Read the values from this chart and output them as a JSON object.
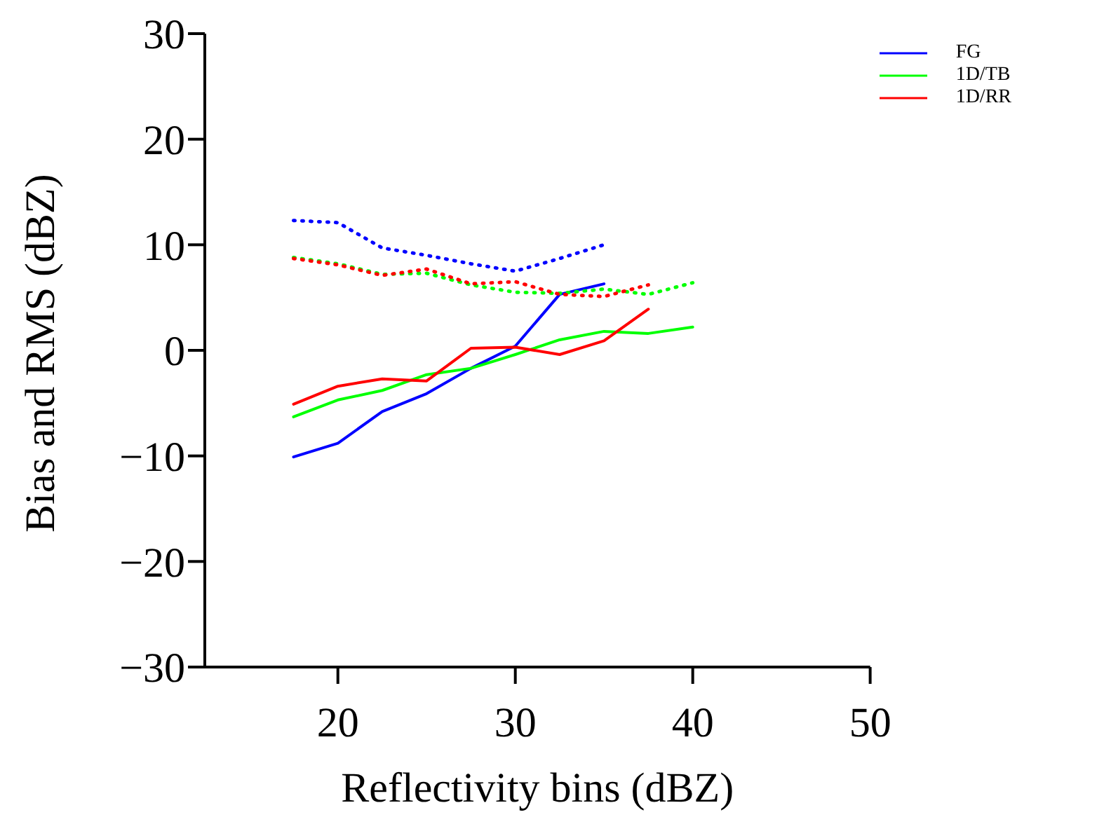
{
  "chart_data": {
    "type": "line",
    "xlabel": "Reflectivity bins (dBZ)",
    "ylabel": "Bias and RMS (dBZ)",
    "xlim": [
      12.5,
      50
    ],
    "xticks": [
      20,
      30,
      40,
      50
    ],
    "ylim": [
      -30,
      30
    ],
    "yticks": [
      -30,
      -20,
      -10,
      0,
      10,
      20,
      30
    ],
    "grid": false,
    "legend": "top right",
    "marker": "none",
    "series": [
      {
        "name": "FG",
        "color": "#0000ff",
        "line_style": "solid",
        "x": [
          17.5,
          20,
          22.5,
          25,
          27.5,
          30,
          32.5,
          35
        ],
        "values": [
          -10.1,
          -8.8,
          -5.8,
          -4.1,
          -1.7,
          0.4,
          5.3,
          6.3
        ]
      },
      {
        "name": "1D/TB",
        "color": "#00ff00",
        "line_style": "solid",
        "x": [
          17.5,
          20,
          22.5,
          25,
          27.5,
          30,
          32.5,
          35,
          37.5,
          40
        ],
        "values": [
          -6.3,
          -4.7,
          -3.8,
          -2.3,
          -1.7,
          -0.4,
          1.0,
          1.8,
          1.6,
          2.2
        ]
      },
      {
        "name": "1D/RR",
        "color": "#ff0000",
        "line_style": "solid",
        "x": [
          17.5,
          20,
          22.5,
          25,
          27.5,
          30,
          32.5,
          35,
          37.5
        ],
        "values": [
          -5.1,
          -3.4,
          -2.7,
          -2.9,
          0.2,
          0.3,
          -0.4,
          0.9,
          3.9
        ]
      },
      {
        "color": "#0000ff",
        "line_style": "dotted",
        "x": [
          17.5,
          20,
          22.5,
          25,
          27.5,
          30,
          32.5,
          35
        ],
        "values": [
          12.3,
          12.1,
          9.7,
          9.0,
          8.2,
          7.5,
          8.7,
          10.0
        ]
      },
      {
        "color": "#00ff00",
        "line_style": "dotted",
        "x": [
          17.5,
          20,
          22.5,
          25,
          27.5,
          30,
          32.5,
          35,
          37.5,
          40
        ],
        "values": [
          8.8,
          8.2,
          7.2,
          7.3,
          6.2,
          5.5,
          5.4,
          5.8,
          5.3,
          6.4
        ]
      },
      {
        "color": "#ff0000",
        "line_style": "dotted",
        "x": [
          17.5,
          20,
          22.5,
          25,
          27.5,
          30,
          32.5,
          35,
          37.5
        ],
        "values": [
          8.7,
          8.1,
          7.1,
          7.7,
          6.3,
          6.5,
          5.3,
          5.1,
          6.2
        ]
      }
    ]
  }
}
